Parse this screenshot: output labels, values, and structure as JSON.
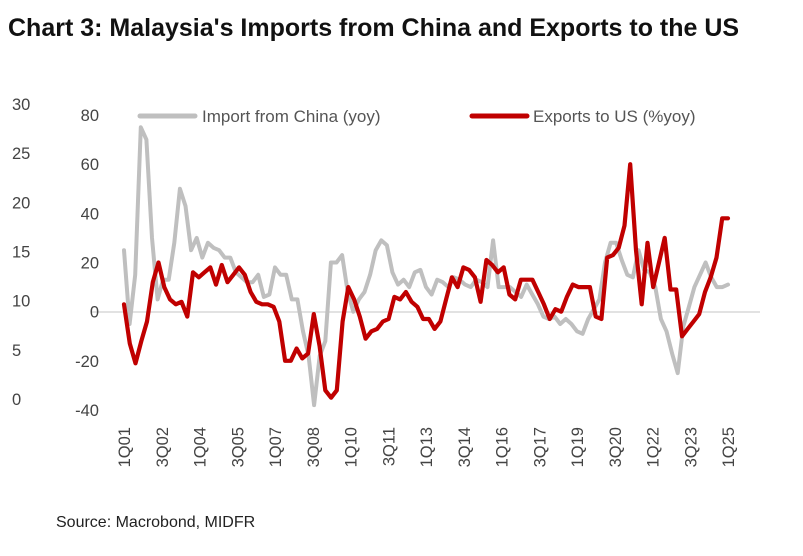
{
  "title": "Chart 3: Malaysia's Imports from China and Exports to the US",
  "source": "Source: Macrobond, MIDFR",
  "chart_data": {
    "type": "line",
    "x_labels": [
      "1Q01",
      "3Q02",
      "1Q04",
      "3Q05",
      "1Q07",
      "3Q08",
      "1Q10",
      "3Q11",
      "1Q13",
      "3Q14",
      "1Q16",
      "3Q17",
      "1Q19",
      "3Q20",
      "1Q22",
      "3Q23",
      "1Q25"
    ],
    "left_axis": {
      "ticks": [
        "30",
        "25",
        "20",
        "15",
        "10",
        "5",
        "0"
      ],
      "range": [
        0,
        30
      ]
    },
    "right_axis": {
      "ticks": [
        "80",
        "60",
        "40",
        "20",
        "0",
        "-20",
        "-40"
      ],
      "range": [
        -40,
        80
      ]
    },
    "series": [
      {
        "name": "Import from China (yoy)",
        "color": "#bfbfbf",
        "values": [
          25,
          -5,
          15,
          75,
          70,
          30,
          5,
          13,
          13,
          28,
          50,
          43,
          25,
          30,
          22,
          28,
          26,
          25,
          22,
          22,
          16,
          14,
          12,
          12,
          15,
          6,
          7,
          18,
          15,
          15,
          5,
          5,
          -8,
          -18,
          -38,
          -18,
          -12,
          20,
          20,
          23,
          8,
          0,
          5,
          8,
          15,
          25,
          29,
          27,
          16,
          11,
          13,
          10,
          16,
          17,
          10,
          7,
          13,
          12,
          10,
          14,
          13,
          11,
          10,
          13,
          12,
          10,
          29,
          10,
          10,
          10,
          8,
          6,
          11,
          7,
          3,
          -2,
          -3,
          -2,
          -5,
          -3,
          -5,
          -8,
          -9,
          -3,
          1,
          5,
          20,
          28,
          28,
          21,
          15,
          14,
          25,
          17,
          16,
          10,
          -3,
          -8,
          -17,
          -25,
          -6,
          2,
          10,
          15,
          20,
          14,
          10,
          10,
          11
        ]
      },
      {
        "name": "Exports to US (%yoy)",
        "color": "#c00000",
        "values": [
          3,
          -13,
          -21,
          -12,
          -4,
          12,
          20,
          10,
          5,
          3,
          4,
          -2,
          16,
          14,
          16,
          18,
          11,
          19,
          12,
          15,
          18,
          15,
          8,
          4,
          3,
          3,
          2,
          -4,
          -20,
          -20,
          -15,
          -19,
          -17,
          -1,
          -14,
          -32,
          -35,
          -32,
          -4,
          10,
          5,
          -2,
          -11,
          -8,
          -7,
          -4,
          -3,
          6,
          5,
          8,
          4,
          2,
          -3,
          -3,
          -7,
          -4,
          5,
          14,
          10,
          18,
          17,
          14,
          4,
          21,
          19,
          16,
          18,
          7,
          5,
          13,
          13,
          13,
          8,
          3,
          -3,
          1,
          0,
          6,
          11,
          10,
          10,
          10,
          -2,
          -3,
          22,
          23,
          26,
          35,
          60,
          25,
          3,
          28,
          10,
          20,
          30,
          9,
          9,
          -10,
          -7,
          -4,
          -1,
          8,
          14,
          22,
          38,
          38
        ]
      }
    ]
  }
}
